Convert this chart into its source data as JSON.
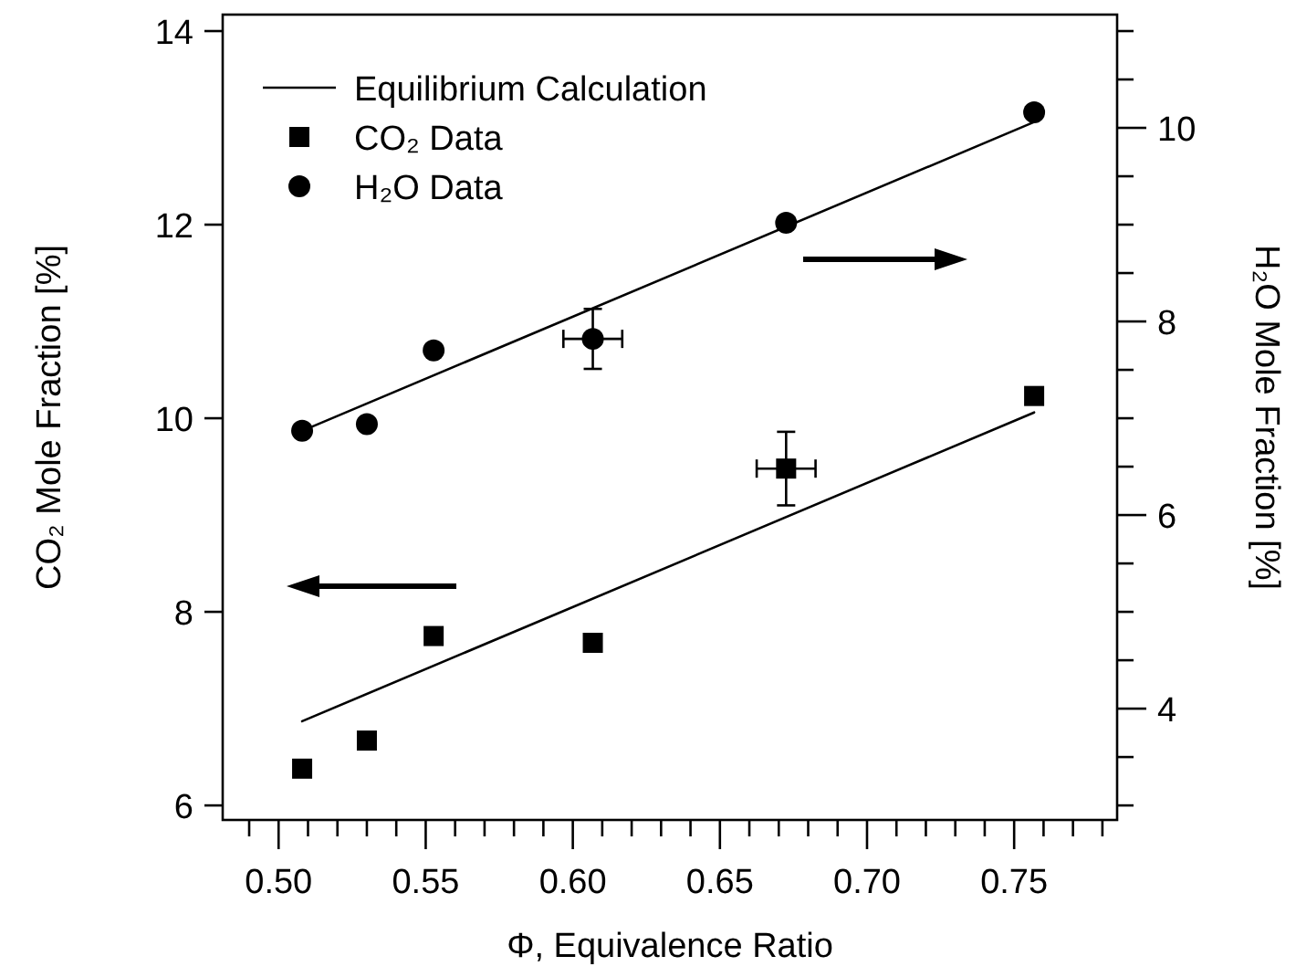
{
  "chart_data": {
    "type": "scatter",
    "xlabel": "Φ, Equivalence Ratio",
    "ylabel": "CO₂ Mole Fraction [%]",
    "y2label": "H₂O Mole Fraction [%]",
    "xlim": [
      0.481,
      0.785
    ],
    "ylim": [
      5.85,
      14.17
    ],
    "y2lim": [
      2.85,
      11.17
    ],
    "xticks": [
      {
        "value": 0.49,
        "label": null
      },
      {
        "value": 0.5,
        "label": "0.50"
      },
      {
        "value": 0.51,
        "label": null
      },
      {
        "value": 0.52,
        "label": null
      },
      {
        "value": 0.53,
        "label": null
      },
      {
        "value": 0.54,
        "label": null
      },
      {
        "value": 0.55,
        "label": "0.55"
      },
      {
        "value": 0.56,
        "label": null
      },
      {
        "value": 0.57,
        "label": null
      },
      {
        "value": 0.58,
        "label": null
      },
      {
        "value": 0.59,
        "label": null
      },
      {
        "value": 0.6,
        "label": "0.60"
      },
      {
        "value": 0.61,
        "label": null
      },
      {
        "value": 0.62,
        "label": null
      },
      {
        "value": 0.63,
        "label": null
      },
      {
        "value": 0.64,
        "label": null
      },
      {
        "value": 0.65,
        "label": "0.65"
      },
      {
        "value": 0.66,
        "label": null
      },
      {
        "value": 0.67,
        "label": null
      },
      {
        "value": 0.68,
        "label": null
      },
      {
        "value": 0.69,
        "label": null
      },
      {
        "value": 0.7,
        "label": "0.70"
      },
      {
        "value": 0.71,
        "label": null
      },
      {
        "value": 0.72,
        "label": null
      },
      {
        "value": 0.73,
        "label": null
      },
      {
        "value": 0.74,
        "label": null
      },
      {
        "value": 0.75,
        "label": "0.75"
      },
      {
        "value": 0.76,
        "label": null
      },
      {
        "value": 0.77,
        "label": null
      },
      {
        "value": 0.78,
        "label": null
      }
    ],
    "yticks": [
      6,
      8,
      10,
      12,
      14
    ],
    "y2ticks": [
      {
        "value": 3,
        "label": null
      },
      {
        "value": 3.5,
        "label": null
      },
      4,
      {
        "value": 4.5,
        "label": null
      },
      {
        "value": 5,
        "label": null
      },
      {
        "value": 5.5,
        "label": null
      },
      6,
      {
        "value": 6.5,
        "label": null
      },
      {
        "value": 7,
        "label": null
      },
      {
        "value": 7.5,
        "label": null
      },
      8,
      {
        "value": 8.5,
        "label": null
      },
      {
        "value": 9,
        "label": null
      },
      {
        "value": 9.5,
        "label": null
      },
      10,
      {
        "value": 10.5,
        "label": null
      },
      {
        "value": 11,
        "label": null
      }
    ],
    "grid": false,
    "legend": "top left",
    "series": [
      {
        "name": "Equilibrium Calculation",
        "type": "line",
        "color": "#000000",
        "marker": "none",
        "line_style": "solid",
        "x": [
          0.508,
          0.7568
        ],
        "values": [
          6.87,
          10.06
        ]
      },
      {
        "type": "line",
        "axis": "y2",
        "color": "#000000",
        "marker": "none",
        "line_style": "solid",
        "x": [
          0.508,
          0.7568
        ],
        "values": [
          6.87,
          10.06
        ]
      },
      {
        "name": "CO₂ Data",
        "type": "scatter",
        "color": "#000000",
        "marker": "square",
        "x": [
          0.508,
          0.53,
          0.5527,
          0.6068,
          0.6725,
          0.7568
        ],
        "values": [
          6.38,
          6.67,
          7.75,
          7.68,
          9.48,
          10.23
        ],
        "errors": [
          null,
          null,
          null,
          null,
          0.38,
          null
        ],
        "xerrors": [
          null,
          null,
          null,
          null,
          0.01,
          null
        ]
      },
      {
        "name": "H₂O Data",
        "type": "scatter",
        "axis": "y2",
        "color": "#000000",
        "marker": "circle",
        "x": [
          0.508,
          0.53,
          0.5527,
          0.6068,
          0.6725,
          0.7568
        ],
        "values": [
          6.87,
          6.94,
          7.7,
          7.82,
          9.02,
          10.16
        ],
        "errors": [
          null,
          null,
          null,
          0.31,
          null,
          null
        ],
        "xerrors": [
          null,
          null,
          null,
          0.01,
          null,
          null
        ]
      }
    ]
  }
}
